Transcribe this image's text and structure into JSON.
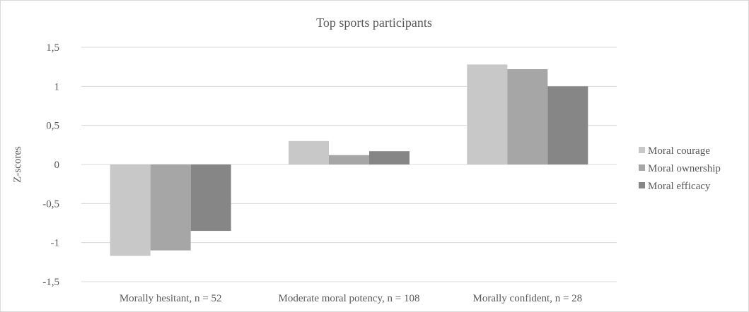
{
  "chart_data": {
    "type": "bar",
    "title": "Top sports participants",
    "xlabel": "",
    "ylabel": "Z-scores",
    "categories": [
      "Morally hesitant,  n = 52",
      "Moderate moral potency, n = 108",
      "Morally confident, n = 28"
    ],
    "series": [
      {
        "name": "Moral courage",
        "color": "#c8c8c8",
        "values": [
          -1.17,
          0.3,
          1.28
        ]
      },
      {
        "name": "Moral ownership",
        "color": "#a6a6a6",
        "values": [
          -1.1,
          0.12,
          1.22
        ]
      },
      {
        "name": "Moral efficacy",
        "color": "#868686",
        "values": [
          -0.85,
          0.17,
          1.0
        ]
      }
    ],
    "ylim": [
      -1.5,
      1.5
    ],
    "yticks": [
      1.5,
      1,
      0.5,
      0,
      -0.5,
      -1,
      -1.5
    ],
    "ytick_labels": [
      "1,5",
      "1",
      "0,5",
      "0",
      "-0,5",
      "-1",
      "-1,5"
    ],
    "grid": true,
    "legend_position": "right"
  }
}
